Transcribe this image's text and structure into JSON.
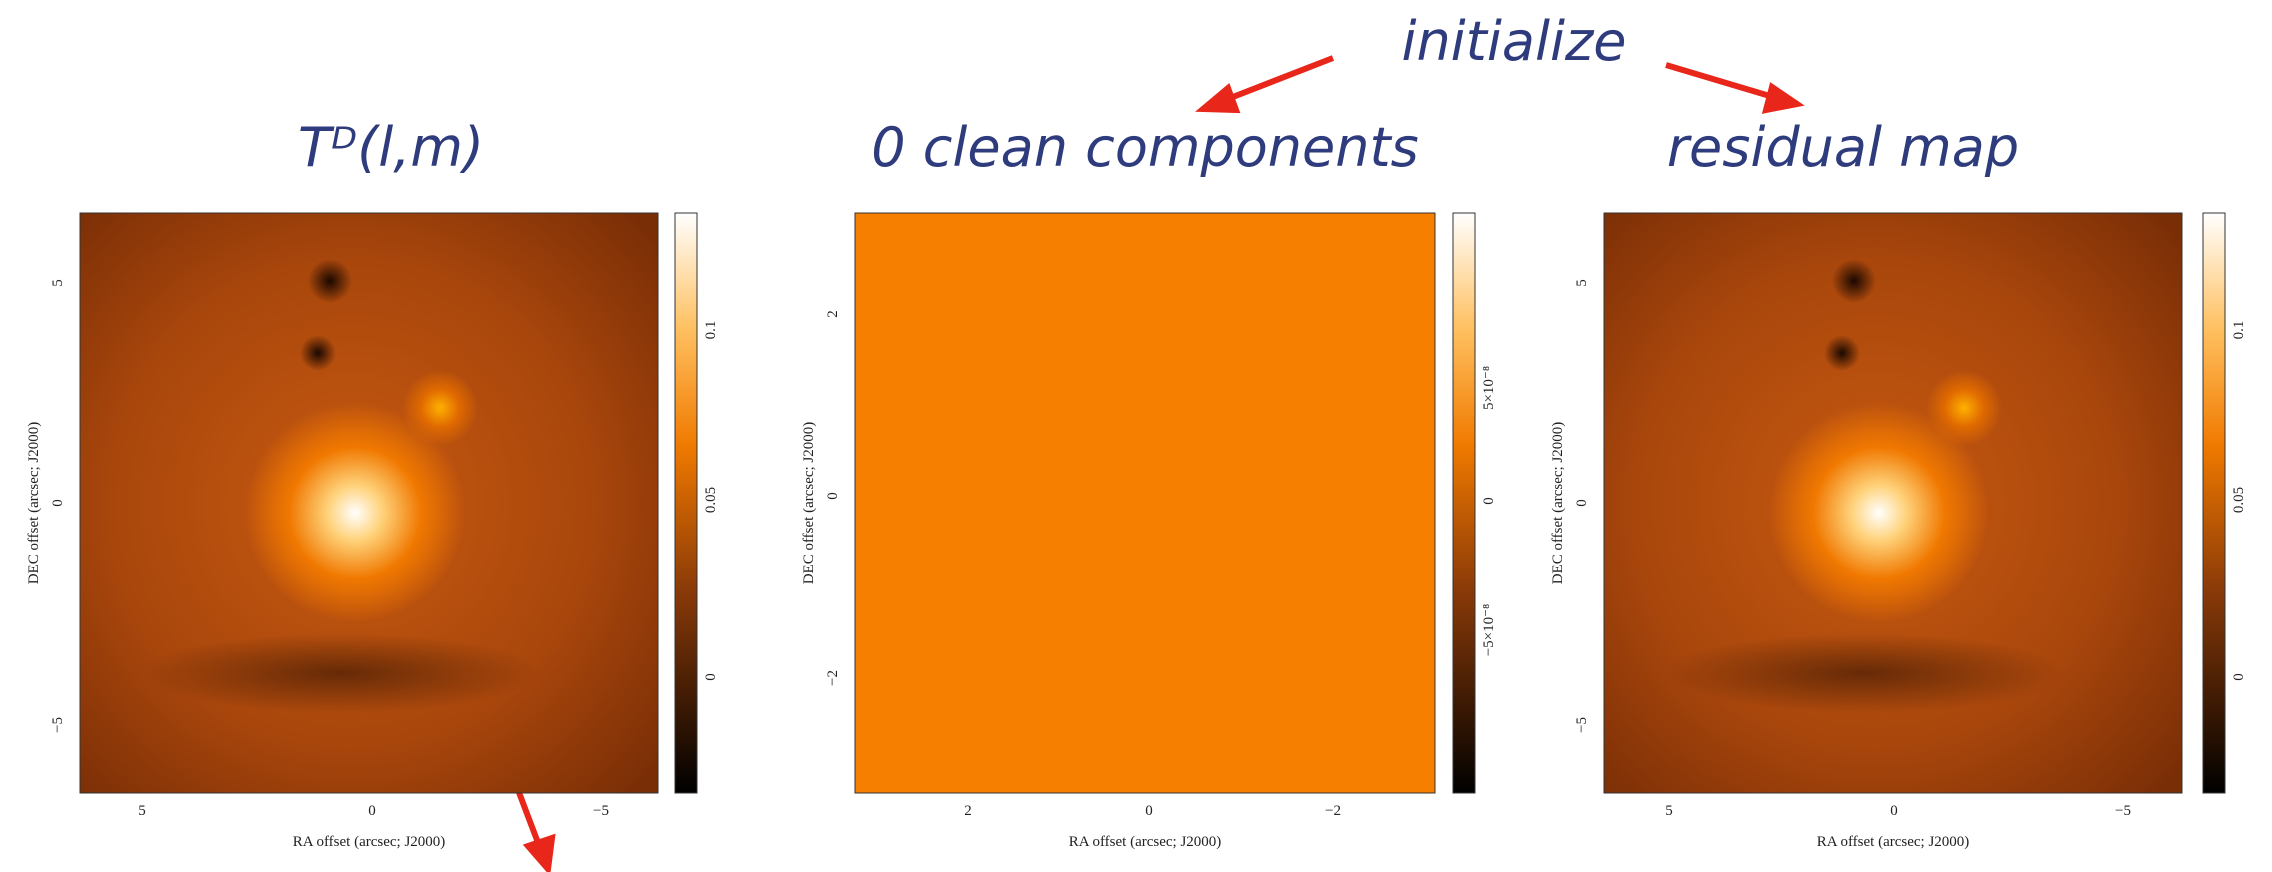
{
  "header": {
    "label": "initialize"
  },
  "panels": [
    {
      "title": "Tᴰ(l,m)",
      "x_label": "RA offset (arcsec; J2000)",
      "y_label": "DEC offset (arcsec; J2000)",
      "x_ticks": [
        "5",
        "0",
        "−5"
      ],
      "y_ticks": [
        "5",
        "0",
        "−5"
      ],
      "colorbar_ticks": [
        "0.1",
        "0.05",
        "0"
      ]
    },
    {
      "title": "0 clean components",
      "x_label": "RA offset (arcsec; J2000)",
      "y_label": "DEC offset (arcsec; J2000)",
      "x_ticks": [
        "2",
        "0",
        "−2"
      ],
      "y_ticks": [
        "2",
        "0",
        "−2"
      ],
      "colorbar_ticks": [
        "5×10⁻⁸",
        "0",
        "−5×10⁻⁸"
      ]
    },
    {
      "title": "residual map",
      "x_label": "RA offset (arcsec; J2000)",
      "y_label": "DEC offset (arcsec; J2000)",
      "x_ticks": [
        "5",
        "0",
        "−5"
      ],
      "y_ticks": [
        "5",
        "0",
        "−5"
      ],
      "colorbar_ticks": [
        "0.1",
        "0.05",
        "0"
      ]
    }
  ]
}
